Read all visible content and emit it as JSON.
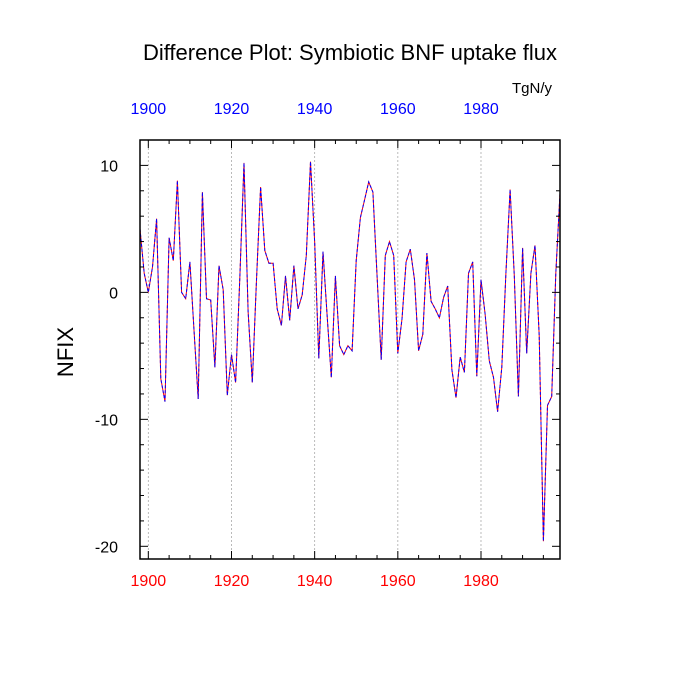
{
  "chart_data": {
    "type": "line",
    "title": "Difference Plot: Symbiotic BNF uptake flux",
    "units": "TgN/y",
    "ylabel": "NFIX",
    "xlabel": "",
    "xlim": [
      1898,
      1999
    ],
    "ylim": [
      -21,
      12
    ],
    "x_ticks": [
      1900,
      1920,
      1940,
      1960,
      1980
    ],
    "y_ticks": [
      10,
      0,
      -10,
      -20
    ],
    "bottom_tick_color": "#ff0000",
    "top_tick_color": "#0000ff",
    "grid": "vertical dotted at major x ticks",
    "series": [
      {
        "color_a": "#ff0000",
        "color_b": "#0000ff",
        "x": [
          1898,
          1899,
          1900,
          1901,
          1902,
          1903,
          1904,
          1905,
          1906,
          1907,
          1908,
          1909,
          1910,
          1911,
          1912,
          1913,
          1914,
          1915,
          1916,
          1917,
          1918,
          1919,
          1920,
          1921,
          1922,
          1923,
          1924,
          1925,
          1926,
          1927,
          1928,
          1929,
          1930,
          1931,
          1932,
          1933,
          1934,
          1935,
          1936,
          1937,
          1938,
          1939,
          1940,
          1941,
          1942,
          1943,
          1944,
          1945,
          1946,
          1947,
          1948,
          1949,
          1950,
          1951,
          1952,
          1953,
          1954,
          1955,
          1956,
          1957,
          1958,
          1959,
          1960,
          1961,
          1962,
          1963,
          1964,
          1965,
          1966,
          1967,
          1968,
          1969,
          1970,
          1971,
          1972,
          1973,
          1974,
          1975,
          1976,
          1977,
          1978,
          1979,
          1980,
          1981,
          1982,
          1983,
          1984,
          1985,
          1986,
          1987,
          1988,
          1989,
          1990,
          1991,
          1992,
          1993,
          1994,
          1995,
          1996,
          1997,
          1998,
          1999
        ],
        "y": [
          5,
          1.5,
          0,
          2,
          5.8,
          -6.8,
          -8.6,
          4.3,
          2.5,
          8.8,
          0,
          -0.5,
          2.4,
          -3.1,
          -8.4,
          7.9,
          -0.5,
          -0.6,
          -5.9,
          2.1,
          0.2,
          -8.1,
          -4.9,
          -7.1,
          1.1,
          10.2,
          -1.5,
          -7.1,
          0.8,
          8.3,
          3.3,
          2.3,
          2.3,
          -1.3,
          -2.6,
          1.3,
          -2.2,
          2.1,
          -1.3,
          -0.2,
          2.9,
          10.3,
          3.9,
          -5.2,
          3.2,
          -1.8,
          -6.7,
          1.3,
          -4.2,
          -4.9,
          -4.2,
          -4.6,
          2.5,
          5.9,
          7.3,
          8.7,
          7.9,
          1.4,
          -5.3,
          2.9,
          4,
          2.9,
          -4.8,
          -2.1,
          2.4,
          3.4,
          1,
          -4.6,
          -3.3,
          3.1,
          -0.7,
          -1.3,
          -2,
          -0.4,
          0.5,
          -6.1,
          -8.3,
          -5.1,
          -6.3,
          1.5,
          2.4,
          -6.6,
          1,
          -1.7,
          -5.4,
          -6.7,
          -9.4,
          -5.9,
          1.5,
          8.1,
          1.3,
          -8.2,
          3.5,
          -4.8,
          1.5,
          3.7,
          -3.4,
          -19.6,
          -8.9,
          -8.2,
          1.5,
          7.8
        ]
      }
    ]
  }
}
